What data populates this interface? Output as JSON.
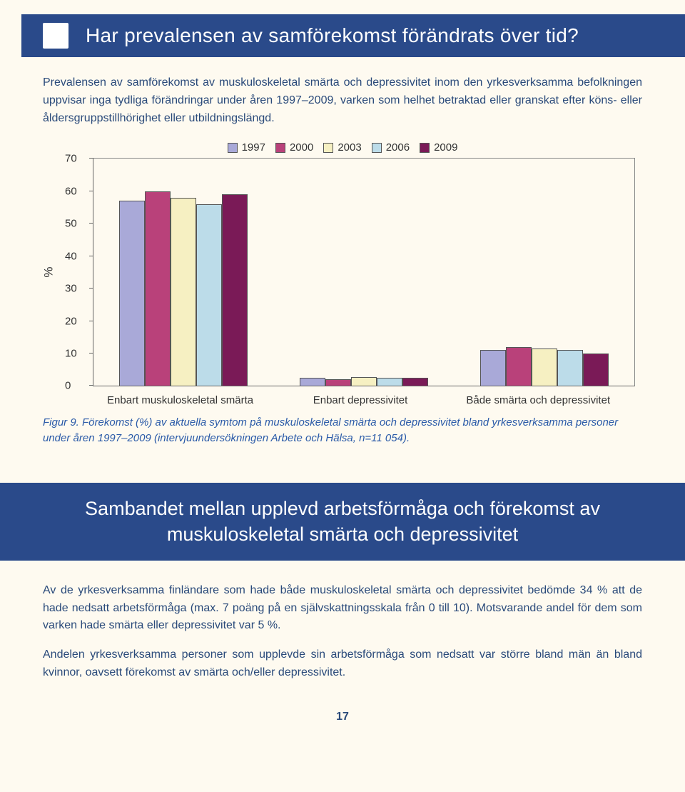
{
  "banner1": {
    "title": "Har prevalensen av samförekomst förändrats över tid?"
  },
  "intro": "Prevalensen av samförekomst av muskuloskeletal smärta och depressivitet inom den yrkesverksamma befolkningen uppvisar inga tydliga förändringar under åren 1997–2009, varken som helhet betraktad eller granskat efter köns- eller åldersgruppstillhörighet eller utbildningslängd.",
  "chart": {
    "type": "bar",
    "background_color": "#fefaf0",
    "border_color": "#888888",
    "ylabel": "%",
    "ylim": [
      0,
      70
    ],
    "ytick_step": 10,
    "yticks": [
      0,
      10,
      20,
      30,
      40,
      50,
      60,
      70
    ],
    "label_fontsize": 15,
    "series": [
      {
        "year": "1997",
        "color": "#a9a9d8"
      },
      {
        "year": "2000",
        "color": "#b9417a"
      },
      {
        "year": "2003",
        "color": "#f6f0c2"
      },
      {
        "year": "2006",
        "color": "#bcdce9"
      },
      {
        "year": "2009",
        "color": "#7a1a57"
      }
    ],
    "categories": [
      "Enbart muskuloskeletal smärta",
      "Enbart depressivitet",
      "Både smärta och depressivitet"
    ],
    "values": [
      [
        57,
        60,
        58,
        56,
        59
      ],
      [
        2.5,
        2.0,
        2.8,
        2.5,
        2.5
      ],
      [
        11,
        12,
        11.5,
        11,
        10
      ]
    ],
    "bar_border": "#555555"
  },
  "caption": "Figur 9. Förekomst (%) av aktuella symtom på muskuloskeletal smärta och depressivitet bland yrkesverksamma personer under åren 1997–2009 (intervjuundersökningen Arbete och Hälsa, n=11 054).",
  "banner2": {
    "title": "Sambandet mellan upplevd arbetsförmåga och förekomst av muskuloskeletal smärta och depressivitet"
  },
  "para2": "Av de yrkesverksamma finländare som hade både muskuloskeletal smärta och depressivitet bedömde 34 % att de hade nedsatt arbetsförmåga (max. 7 poäng på en självskattningsskala från 0 till 10). Motsvarande andel för dem som varken hade smärta eller depressivitet var 5 %.",
  "para3": "Andelen yrkesverksamma personer som upplevde sin arbetsförmåga som nedsatt var större bland män än bland kvinnor, oavsett förekomst av smärta och/eller depressivitet.",
  "page_number": "17"
}
